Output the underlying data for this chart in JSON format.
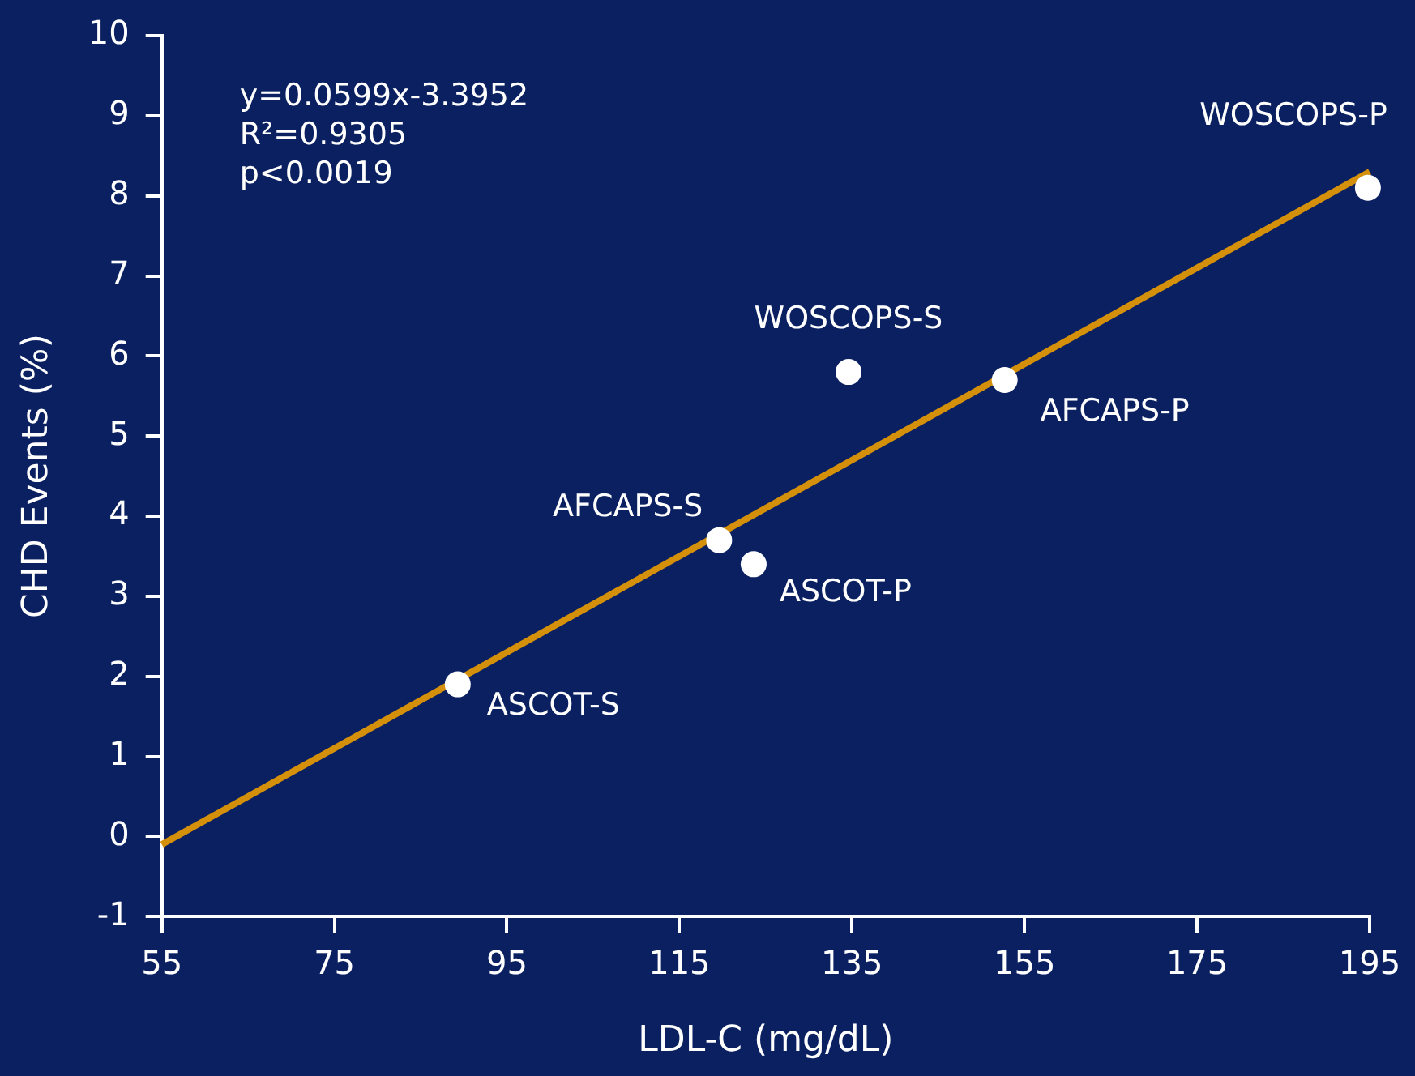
{
  "chart_data": {
    "type": "scatter",
    "xlabel": "LDL-C (mg/dL)",
    "ylabel": "CHD Events (%)",
    "xlim": [
      55,
      195
    ],
    "xticks": [
      55,
      75,
      95,
      115,
      135,
      155,
      175,
      195
    ],
    "ylim": [
      -1,
      10
    ],
    "yticks": [
      -1,
      0,
      1,
      2,
      3,
      4,
      5,
      6,
      7,
      8,
      9,
      10
    ],
    "grid": false,
    "legend": false,
    "marker": "circle",
    "series": [
      {
        "color": "#ffffff",
        "x": [
          89.3,
          119.6,
          123.6,
          134.6,
          152.7,
          194.8
        ],
        "values": [
          1.9,
          3.7,
          3.4,
          5.8,
          5.7,
          8.1
        ]
      },
      {
        "type": "line",
        "color": "#d4900a",
        "x": [
          55,
          195
        ],
        "values": [
          -0.1,
          8.3
        ],
        "line_style": "solid",
        "marker": "none"
      }
    ],
    "annotations": [
      "y=0.0599x-3.3952",
      "R²=0.9305",
      "p<0.0019",
      {
        "text": "ASCOT-S",
        "x": 89.3,
        "y": 1.9
      },
      {
        "text": "AFCAPS-S",
        "x": 119.6,
        "y": 3.7
      },
      {
        "text": "ASCOT-P",
        "x": 123.6,
        "y": 3.4
      },
      {
        "text": "WOSCOPS-S",
        "x": 134.6,
        "y": 5.8
      },
      {
        "text": "AFCAPS-P",
        "x": 152.7,
        "y": 5.7
      },
      {
        "text": "WOSCOPS-P",
        "x": 194.8,
        "y": 8.1
      }
    ]
  }
}
